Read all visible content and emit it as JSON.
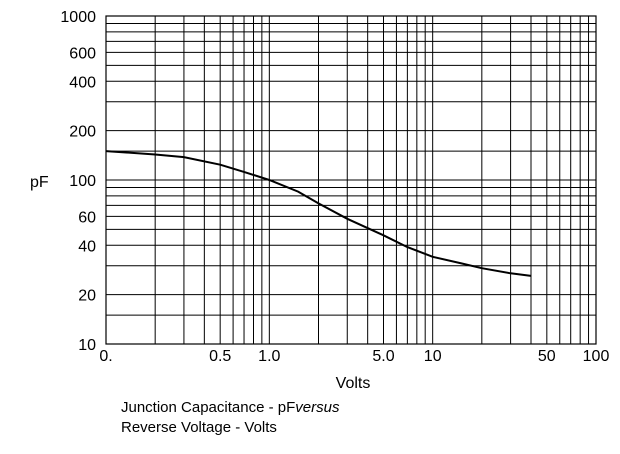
{
  "chart_data": {
    "type": "line",
    "title": "",
    "caption_line1_prefix": "Junction Capacitance - pF",
    "caption_line1_italic": "versus",
    "caption_line2": "Reverse Voltage - Volts",
    "xlabel": "Volts",
    "ylabel": "pF",
    "x_scale": "log",
    "y_scale": "log",
    "xlim": [
      0.1,
      100
    ],
    "ylim": [
      10,
      1000
    ],
    "grid": true,
    "x_tick_labels": [
      {
        "value": 0.1,
        "label": "0."
      },
      {
        "value": 0.5,
        "label": "0.5"
      },
      {
        "value": 1,
        "label": "1.0"
      },
      {
        "value": 5,
        "label": "5.0"
      },
      {
        "value": 10,
        "label": "10"
      },
      {
        "value": 50,
        "label": "50"
      },
      {
        "value": 100,
        "label": "100"
      }
    ],
    "y_tick_labels": [
      {
        "value": 10,
        "label": "10"
      },
      {
        "value": 20,
        "label": "20"
      },
      {
        "value": 40,
        "label": "40"
      },
      {
        "value": 60,
        "label": "60"
      },
      {
        "value": 100,
        "label": "100"
      },
      {
        "value": 200,
        "label": "200"
      },
      {
        "value": 400,
        "label": "400"
      },
      {
        "value": 600,
        "label": "600"
      },
      {
        "value": 1000,
        "label": "1000"
      }
    ],
    "x_grid": [
      0.1,
      0.2,
      0.3,
      0.4,
      0.5,
      0.6,
      0.7,
      0.8,
      0.9,
      1,
      2,
      3,
      4,
      5,
      6,
      7,
      8,
      9,
      10,
      20,
      30,
      40,
      50,
      60,
      70,
      80,
      90,
      100
    ],
    "y_grid": [
      10,
      15,
      20,
      30,
      40,
      50,
      60,
      70,
      80,
      90,
      100,
      150,
      200,
      300,
      400,
      500,
      600,
      700,
      800,
      900,
      1000
    ],
    "series": [
      {
        "x": [
          0.1,
          0.2,
          0.3,
          0.5,
          0.7,
          1.0,
          1.5,
          2.0,
          3.0,
          5.0,
          7.0,
          10,
          15,
          20,
          30,
          40
        ],
        "y": [
          150,
          143,
          138,
          124,
          112,
          100,
          85,
          72,
          58,
          46,
          39,
          34,
          31,
          29,
          27,
          26
        ],
        "color": "#000000"
      }
    ]
  }
}
